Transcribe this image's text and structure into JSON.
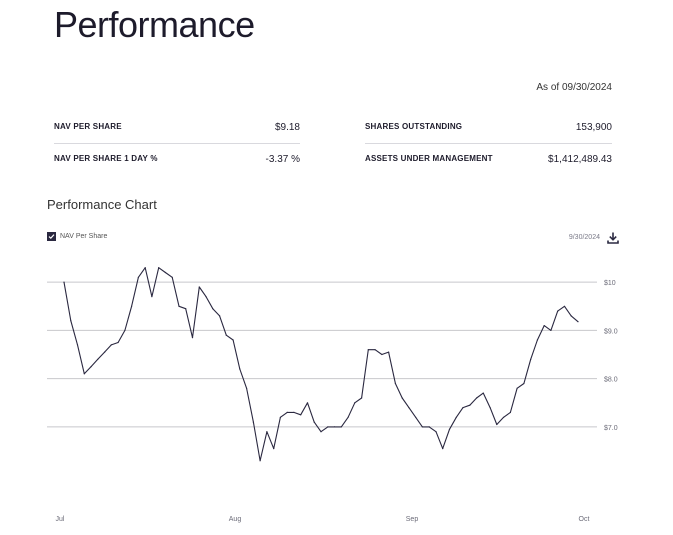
{
  "page": {
    "title": "Performance",
    "as_of": "As of 09/30/2024"
  },
  "stats": {
    "left": [
      {
        "label": "NAV PER SHARE",
        "value": "$9.18"
      },
      {
        "label": "NAV PER SHARE 1 DAY %",
        "value": "-3.37 %"
      }
    ],
    "right": [
      {
        "label": "SHARES OUTSTANDING",
        "value": "153,900"
      },
      {
        "label": "ASSETS UNDER MANAGEMENT",
        "value": "$1,412,489.43"
      }
    ]
  },
  "chart": {
    "heading": "Performance Chart",
    "legend_label": "NAV Per Share",
    "legend_checked": true,
    "date_label": "9/30/2024",
    "download_icon": "download-icon",
    "line_color": "#2a2840",
    "grid_color": "#c8c8cc"
  },
  "chart_data": {
    "type": "line",
    "title": "Performance Chart",
    "xlabel": "",
    "ylabel": "",
    "series": [
      {
        "name": "NAV Per Share",
        "values": [
          10.0,
          9.2,
          8.7,
          8.1,
          8.25,
          8.4,
          8.55,
          8.7,
          8.75,
          9.0,
          9.5,
          10.1,
          10.3,
          9.7,
          10.3,
          10.2,
          10.1,
          9.5,
          9.45,
          8.85,
          9.9,
          9.7,
          9.45,
          9.3,
          8.9,
          8.8,
          8.2,
          7.8,
          7.1,
          6.3,
          6.9,
          6.55,
          7.2,
          7.3,
          7.3,
          7.25,
          7.5,
          7.1,
          6.9,
          7.0,
          7.0,
          7.0,
          7.2,
          7.5,
          7.6,
          8.6,
          8.6,
          8.5,
          8.55,
          7.9,
          7.6,
          7.4,
          7.2,
          7.0,
          7.0,
          6.9,
          6.55,
          6.95,
          7.2,
          7.4,
          7.45,
          7.6,
          7.7,
          7.4,
          7.05,
          7.2,
          7.3,
          7.8,
          7.9,
          8.4,
          8.8,
          9.1,
          9.0,
          9.4,
          9.5,
          9.3,
          9.18
        ]
      }
    ],
    "x_labels": [
      "Jul",
      "Aug",
      "Sep",
      "Oct"
    ],
    "y_ticks": [
      {
        "value": 10,
        "label": "$10"
      },
      {
        "value": 9,
        "label": "$9.0"
      },
      {
        "value": 8,
        "label": "$8.0"
      },
      {
        "value": 7,
        "label": "$7.0"
      }
    ],
    "ylim": [
      5.9,
      10.5
    ],
    "grid": true,
    "legend_position": "top-left"
  }
}
